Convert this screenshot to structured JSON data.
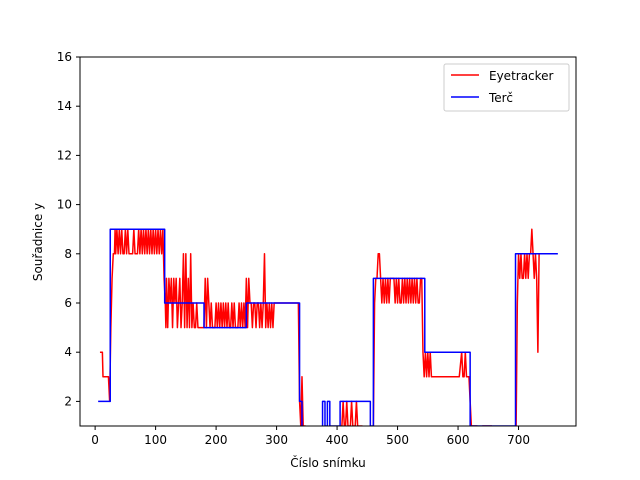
{
  "chart_data": {
    "type": "line",
    "title": "",
    "xlabel": "Číslo snímku",
    "ylabel": "Souřadnice y",
    "xlim": [
      -25,
      795
    ],
    "ylim": [
      1,
      16
    ],
    "xticks": [
      0,
      100,
      200,
      300,
      400,
      500,
      600,
      700
    ],
    "yticks": [
      2,
      4,
      6,
      8,
      10,
      12,
      14,
      16
    ],
    "grid": false,
    "legend_position": "top-right",
    "series": [
      {
        "name": "Eyetracker",
        "color": "#ff0000",
        "points": [
          [
            8,
            4
          ],
          [
            12,
            4
          ],
          [
            13,
            3
          ],
          [
            22,
            3
          ],
          [
            24,
            2
          ],
          [
            26,
            5
          ],
          [
            28,
            7
          ],
          [
            30,
            8
          ],
          [
            32,
            8
          ],
          [
            33,
            9
          ],
          [
            34,
            8
          ],
          [
            36,
            9
          ],
          [
            38,
            8
          ],
          [
            40,
            9
          ],
          [
            42,
            8
          ],
          [
            44,
            9
          ],
          [
            46,
            8
          ],
          [
            48,
            8
          ],
          [
            50,
            9
          ],
          [
            52,
            8
          ],
          [
            54,
            9
          ],
          [
            56,
            8
          ],
          [
            58,
            8
          ],
          [
            62,
            8
          ],
          [
            64,
            9
          ],
          [
            66,
            8
          ],
          [
            70,
            8
          ],
          [
            72,
            9
          ],
          [
            74,
            8
          ],
          [
            76,
            9
          ],
          [
            78,
            8
          ],
          [
            80,
            9
          ],
          [
            82,
            8
          ],
          [
            84,
            9
          ],
          [
            86,
            8
          ],
          [
            88,
            9
          ],
          [
            90,
            8
          ],
          [
            92,
            9
          ],
          [
            94,
            8
          ],
          [
            96,
            9
          ],
          [
            98,
            8
          ],
          [
            100,
            9
          ],
          [
            102,
            8
          ],
          [
            104,
            9
          ],
          [
            106,
            8
          ],
          [
            108,
            9
          ],
          [
            110,
            8
          ],
          [
            112,
            9
          ],
          [
            114,
            7
          ],
          [
            116,
            6
          ],
          [
            117,
            5
          ],
          [
            118,
            7
          ],
          [
            120,
            5
          ],
          [
            122,
            7
          ],
          [
            124,
            6
          ],
          [
            126,
            7
          ],
          [
            128,
            5
          ],
          [
            130,
            7
          ],
          [
            132,
            6
          ],
          [
            134,
            7
          ],
          [
            136,
            5
          ],
          [
            138,
            6
          ],
          [
            140,
            7
          ],
          [
            142,
            5
          ],
          [
            144,
            6
          ],
          [
            146,
            8
          ],
          [
            148,
            5
          ],
          [
            150,
            8
          ],
          [
            152,
            5
          ],
          [
            154,
            7
          ],
          [
            156,
            5
          ],
          [
            158,
            8
          ],
          [
            160,
            5
          ],
          [
            162,
            6
          ],
          [
            164,
            5
          ],
          [
            166,
            5
          ],
          [
            168,
            6
          ],
          [
            170,
            5
          ],
          [
            172,
            5
          ],
          [
            174,
            5
          ],
          [
            176,
            5
          ],
          [
            178,
            5
          ],
          [
            180,
            5
          ],
          [
            182,
            7
          ],
          [
            184,
            5
          ],
          [
            186,
            7
          ],
          [
            188,
            6
          ],
          [
            190,
            5
          ],
          [
            192,
            6
          ],
          [
            194,
            5
          ],
          [
            196,
            5
          ],
          [
            198,
            5
          ],
          [
            200,
            6
          ],
          [
            202,
            5
          ],
          [
            204,
            6
          ],
          [
            206,
            5
          ],
          [
            208,
            6
          ],
          [
            210,
            5
          ],
          [
            212,
            6
          ],
          [
            214,
            5
          ],
          [
            216,
            6
          ],
          [
            218,
            5
          ],
          [
            220,
            6
          ],
          [
            222,
            5
          ],
          [
            224,
            5
          ],
          [
            226,
            6
          ],
          [
            228,
            5
          ],
          [
            230,
            6
          ],
          [
            232,
            5
          ],
          [
            234,
            5
          ],
          [
            236,
            5
          ],
          [
            238,
            6
          ],
          [
            240,
            5
          ],
          [
            242,
            6
          ],
          [
            244,
            5
          ],
          [
            246,
            6
          ],
          [
            248,
            5
          ],
          [
            250,
            7
          ],
          [
            252,
            5
          ],
          [
            254,
            7
          ],
          [
            256,
            6
          ],
          [
            258,
            6
          ],
          [
            260,
            5
          ],
          [
            262,
            6
          ],
          [
            264,
            6
          ],
          [
            266,
            5
          ],
          [
            268,
            6
          ],
          [
            270,
            6
          ],
          [
            272,
            5
          ],
          [
            274,
            6
          ],
          [
            276,
            5
          ],
          [
            278,
            6
          ],
          [
            280,
            8
          ],
          [
            282,
            5
          ],
          [
            284,
            6
          ],
          [
            286,
            5
          ],
          [
            288,
            6
          ],
          [
            290,
            5
          ],
          [
            292,
            6
          ],
          [
            294,
            5
          ],
          [
            296,
            6
          ],
          [
            298,
            6
          ],
          [
            302,
            6
          ],
          [
            306,
            6
          ],
          [
            310,
            6
          ],
          [
            314,
            6
          ],
          [
            318,
            6
          ],
          [
            322,
            6
          ],
          [
            326,
            6
          ],
          [
            330,
            6
          ],
          [
            334,
            6
          ],
          [
            336,
            6
          ],
          [
            338,
            2
          ],
          [
            340,
            1
          ],
          [
            342,
            3
          ],
          [
            344,
            1
          ],
          [
            346,
            1
          ],
          [
            348,
            1
          ]
        ],
        "points_segment2": [
          [
            406,
            1
          ],
          [
            408,
            1
          ],
          [
            410,
            2
          ],
          [
            412,
            1
          ],
          [
            414,
            1
          ],
          [
            416,
            2
          ],
          [
            418,
            1
          ],
          [
            420,
            1
          ],
          [
            422,
            1
          ],
          [
            424,
            2
          ],
          [
            426,
            1
          ],
          [
            430,
            1
          ],
          [
            432,
            2
          ],
          [
            434,
            1
          ],
          [
            436,
            1
          ],
          [
            442,
            1
          ]
        ],
        "points_segment3": [
          [
            460,
            1
          ],
          [
            462,
            6
          ],
          [
            464,
            7
          ],
          [
            466,
            7
          ],
          [
            468,
            8
          ],
          [
            470,
            8
          ],
          [
            472,
            7
          ],
          [
            474,
            6
          ],
          [
            476,
            7
          ],
          [
            478,
            6
          ],
          [
            480,
            7
          ],
          [
            482,
            6
          ],
          [
            484,
            7
          ],
          [
            486,
            6
          ],
          [
            488,
            7
          ],
          [
            490,
            7
          ],
          [
            494,
            7
          ],
          [
            496,
            6
          ],
          [
            498,
            7
          ],
          [
            500,
            6
          ],
          [
            502,
            7
          ],
          [
            504,
            6
          ],
          [
            506,
            6
          ],
          [
            508,
            7
          ],
          [
            510,
            6
          ],
          [
            512,
            7
          ],
          [
            514,
            6
          ],
          [
            516,
            7
          ],
          [
            518,
            6
          ],
          [
            520,
            7
          ],
          [
            522,
            6
          ],
          [
            524,
            7
          ],
          [
            526,
            6
          ],
          [
            528,
            7
          ],
          [
            530,
            6
          ],
          [
            532,
            7
          ],
          [
            534,
            6
          ],
          [
            536,
            6
          ],
          [
            538,
            7
          ],
          [
            540,
            7
          ],
          [
            542,
            4
          ],
          [
            544,
            3
          ],
          [
            546,
            4
          ],
          [
            548,
            3
          ],
          [
            550,
            4
          ],
          [
            552,
            3
          ],
          [
            554,
            4
          ],
          [
            556,
            3
          ],
          [
            558,
            3
          ],
          [
            562,
            3
          ],
          [
            566,
            3
          ],
          [
            570,
            3
          ],
          [
            574,
            3
          ],
          [
            578,
            3
          ],
          [
            582,
            3
          ],
          [
            586,
            3
          ],
          [
            590,
            3
          ],
          [
            594,
            3
          ],
          [
            598,
            3
          ],
          [
            602,
            3
          ],
          [
            606,
            4
          ],
          [
            608,
            3
          ],
          [
            610,
            3
          ],
          [
            612,
            4
          ],
          [
            614,
            3
          ],
          [
            616,
            3
          ],
          [
            618,
            3
          ],
          [
            620,
            2
          ],
          [
            622,
            1
          ],
          [
            624,
            1
          ],
          [
            628,
            1
          ],
          [
            632,
            1
          ]
        ],
        "points_segment4": [
          [
            640,
            1
          ],
          [
            648,
            1
          ],
          [
            652,
            1
          ],
          [
            656,
            1
          ]
        ],
        "points_segment5": [
          [
            696,
            1
          ],
          [
            698,
            6
          ],
          [
            700,
            8
          ],
          [
            702,
            7
          ],
          [
            704,
            8
          ],
          [
            706,
            7
          ],
          [
            708,
            7
          ],
          [
            710,
            8
          ],
          [
            712,
            7
          ],
          [
            714,
            8
          ],
          [
            716,
            7
          ],
          [
            718,
            8
          ],
          [
            720,
            8
          ],
          [
            722,
            9
          ],
          [
            724,
            8
          ],
          [
            726,
            7
          ],
          [
            728,
            8
          ],
          [
            730,
            7
          ],
          [
            732,
            4
          ],
          [
            734,
            8
          ],
          [
            736,
            8
          ]
        ]
      },
      {
        "name": "Terč",
        "color": "#0000ff",
        "points": [
          [
            5,
            2
          ],
          [
            25,
            2
          ],
          [
            25,
            9
          ],
          [
            115,
            9
          ],
          [
            115,
            6
          ],
          [
            180,
            6
          ],
          [
            180,
            5
          ],
          [
            250,
            5
          ],
          [
            250,
            6
          ],
          [
            338,
            6
          ],
          [
            338,
            2
          ],
          [
            342,
            2
          ],
          [
            342,
            1
          ]
        ],
        "points_segment2": [
          [
            376,
            1
          ],
          [
            376,
            2
          ],
          [
            380,
            2
          ],
          [
            380,
            1
          ],
          [
            384,
            1
          ],
          [
            384,
            2
          ],
          [
            388,
            2
          ],
          [
            388,
            1
          ],
          [
            405,
            1
          ],
          [
            405,
            2
          ],
          [
            455,
            2
          ],
          [
            455,
            1
          ],
          [
            460,
            1
          ],
          [
            460,
            7
          ],
          [
            545,
            7
          ],
          [
            545,
            4
          ],
          [
            620,
            4
          ],
          [
            620,
            1
          ],
          [
            695,
            1
          ],
          [
            695,
            8
          ],
          [
            765,
            8
          ]
        ]
      }
    ]
  }
}
